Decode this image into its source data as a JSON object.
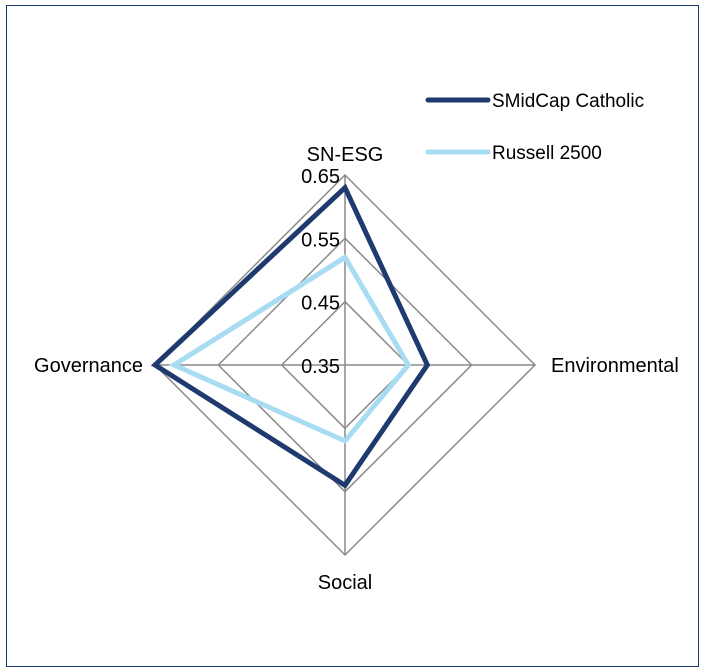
{
  "chart_data": {
    "type": "radar",
    "axes": [
      "SN-ESG",
      "Environmental",
      "Social",
      "Governance"
    ],
    "ticks": [
      0.35,
      0.45,
      0.55,
      0.65
    ],
    "tick_labels": [
      "0.35",
      "0.45",
      "0.55",
      "0.65"
    ],
    "rmin": 0.35,
    "rmax": 0.65,
    "series": [
      {
        "name": "SMidCap Catholic",
        "values": [
          0.63,
          0.48,
          0.54,
          0.65
        ],
        "color": "#1f3a6e"
      },
      {
        "name": "Russell 2500",
        "values": [
          0.52,
          0.45,
          0.47,
          0.62
        ],
        "color": "#a8dcf2"
      }
    ],
    "legend_position": "top-right",
    "grid": true,
    "grid_color": "#8a8a8a"
  }
}
